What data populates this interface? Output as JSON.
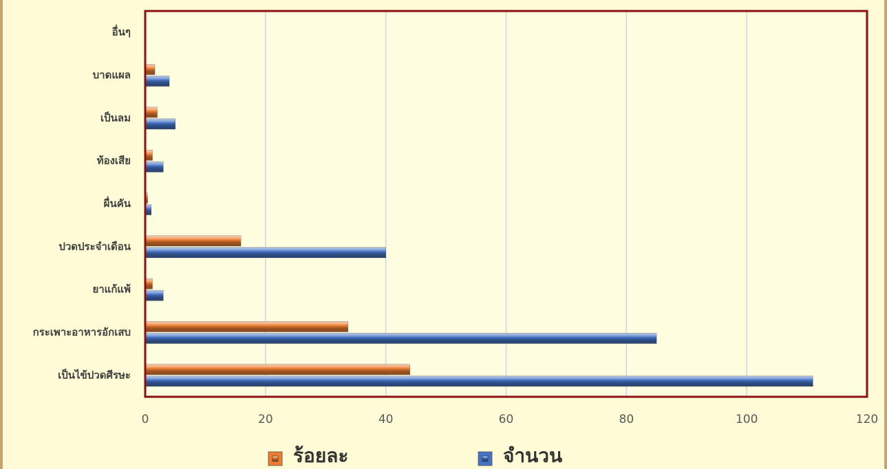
{
  "chart_data": {
    "type": "bar",
    "orientation": "horizontal",
    "categories": [
      "เป็นไข้ปวดศีรษะ",
      "กระเพาะอาหารอักเสบ",
      "ยาแก้แพ้",
      "ปวดประจำเดือน",
      "ผื่นคัน",
      "ท้องเสีย",
      "เป็นลม",
      "บาดแผล",
      "อื่นๆ"
    ],
    "series": [
      {
        "name": "ร้อยละ",
        "color": "#ed7d31",
        "values": [
          44,
          33.7,
          1.2,
          15.9,
          0.4,
          1.2,
          2,
          1.6,
          0
        ]
      },
      {
        "name": "จำนวน",
        "color": "#4472c4",
        "values": [
          111,
          85,
          3,
          40,
          1,
          3,
          5,
          4,
          0
        ]
      }
    ],
    "xlim": [
      0,
      120
    ],
    "xticks": [
      0,
      20,
      40,
      60,
      80,
      100,
      120
    ],
    "grid": true,
    "legend": "bottom"
  }
}
